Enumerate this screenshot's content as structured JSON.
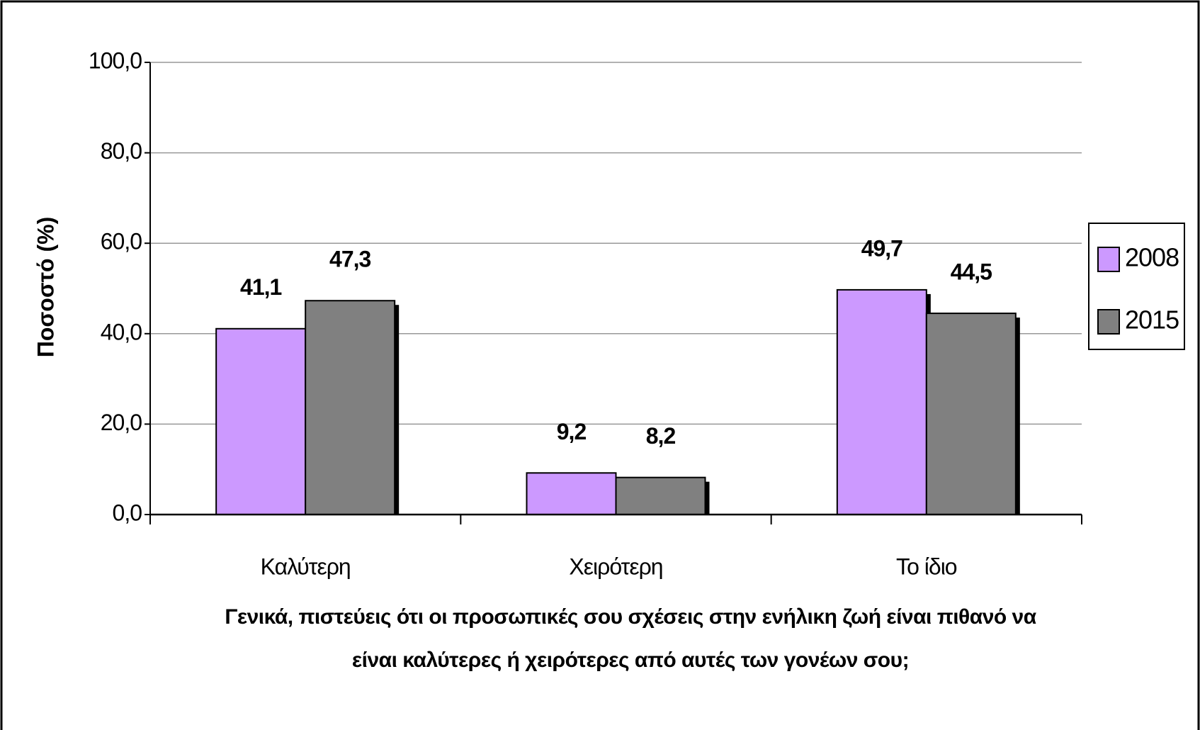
{
  "chart_data": {
    "type": "bar",
    "ylabel": "Ποσοστό (%)",
    "xlabel": "Γενικά, πιστεύεις ότι οι προσωπικές σου σχέσεις στην ενήλικη ζωή είναι πιθανό να είναι καλύτερες ή χειρότερες από αυτές των γονέων σου;",
    "categories": [
      "Καλύτερη",
      "Χειρότερη",
      "Το ίδιο"
    ],
    "series": [
      {
        "name": "2008",
        "color": "#cc99ff",
        "values": [
          41.1,
          9.2,
          49.7
        ],
        "value_labels": [
          "41,1",
          "9,2",
          "49,7"
        ]
      },
      {
        "name": "2015",
        "color": "#808080",
        "values": [
          47.3,
          8.2,
          44.5
        ],
        "value_labels": [
          "47,3",
          "8,2",
          "44,5"
        ]
      }
    ],
    "ylim": [
      0,
      100
    ],
    "yticks": [
      {
        "value": 0,
        "label": "0,0"
      },
      {
        "value": 20,
        "label": "20,0"
      },
      {
        "value": 40,
        "label": "40,0"
      },
      {
        "value": 60,
        "label": "60,0"
      },
      {
        "value": 80,
        "label": "80,0"
      },
      {
        "value": 100,
        "label": "100,0"
      }
    ],
    "grid": true,
    "legend": "right"
  }
}
